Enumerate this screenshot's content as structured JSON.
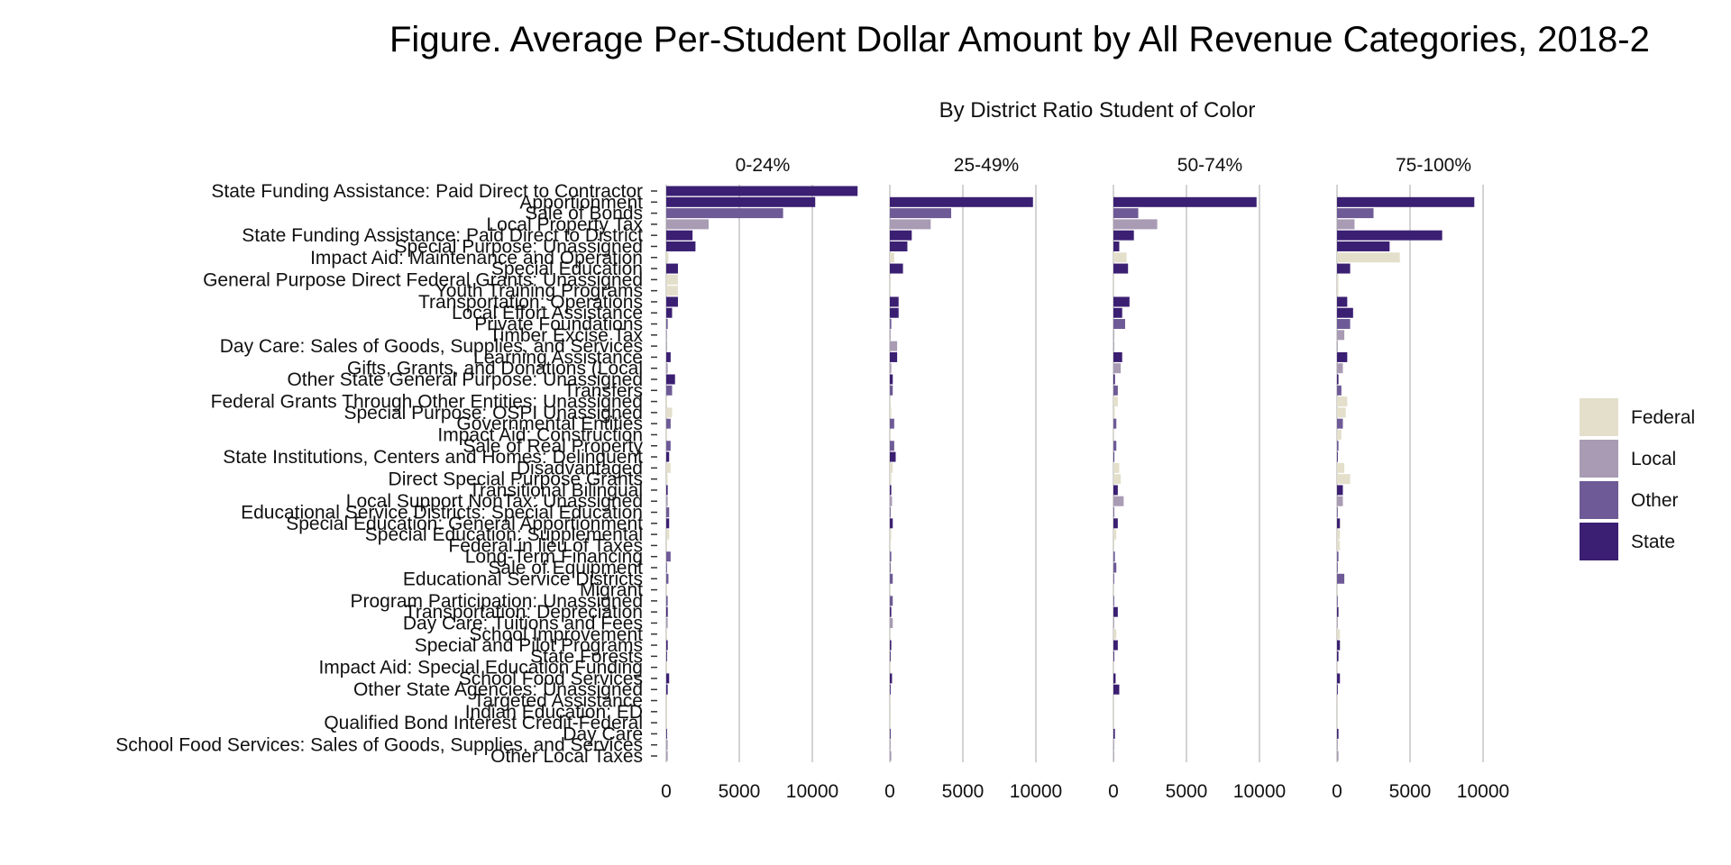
{
  "chart_data": {
    "type": "bar",
    "title": "Figure. Average Per-Student Dollar Amount by All Revenue Categories, 2018-2",
    "subtitle": "By District Ratio Student of Color",
    "panels": [
      "0-24%",
      "25-49%",
      "50-74%",
      "75-100%"
    ],
    "xticks": [
      0,
      5000,
      10000
    ],
    "xlim": [
      0,
      10000
    ],
    "grid": true,
    "legend_position": "right",
    "legend": [
      {
        "name": "Federal",
        "color": "#e3dfcb"
      },
      {
        "name": "Local",
        "color": "#a89bb3"
      },
      {
        "name": "Other",
        "color": "#6e5a96"
      },
      {
        "name": "State",
        "color": "#3b1f72"
      }
    ],
    "categories": [
      {
        "label": "State Funding Assistance: Paid Direct to Contractor",
        "source": "State",
        "values": [
          13100,
          0,
          0,
          0
        ]
      },
      {
        "label": "Apportionment",
        "source": "State",
        "values": [
          10200,
          9800,
          9800,
          9400
        ]
      },
      {
        "label": "Sale of Bonds",
        "source": "Other",
        "values": [
          8000,
          4200,
          1700,
          2500
        ]
      },
      {
        "label": "Local Property Tax",
        "source": "Local",
        "values": [
          2900,
          2800,
          3000,
          1200
        ]
      },
      {
        "label": "State Funding Assistance: Paid Direct to District",
        "source": "State",
        "values": [
          1800,
          1500,
          1400,
          7200
        ]
      },
      {
        "label": "Special Purpose: Unassigned",
        "source": "State",
        "values": [
          2000,
          1200,
          400,
          3600
        ]
      },
      {
        "label": "Impact Aid: Maintenance and Operation",
        "source": "Federal",
        "values": [
          150,
          300,
          900,
          4300
        ]
      },
      {
        "label": "Special Education",
        "source": "State",
        "values": [
          800,
          900,
          1000,
          900
        ]
      },
      {
        "label": "General Purpose Direct Federal Grants: Unassigned",
        "source": "Federal",
        "values": [
          800,
          50,
          50,
          100
        ]
      },
      {
        "label": "Youth Training Programs",
        "source": "Federal",
        "values": [
          800,
          50,
          50,
          100
        ]
      },
      {
        "label": "Transportation: Operations",
        "source": "State",
        "values": [
          800,
          600,
          1100,
          700
        ]
      },
      {
        "label": "Local Effort Assistance",
        "source": "State",
        "values": [
          400,
          600,
          600,
          1100
        ]
      },
      {
        "label": "Private Foundations",
        "source": "Other",
        "values": [
          100,
          100,
          800,
          900
        ]
      },
      {
        "label": "Timber Excise Tax",
        "source": "Local",
        "values": [
          50,
          50,
          50,
          500
        ]
      },
      {
        "label": "Day Care: Sales of Goods, Supplies, and Services",
        "source": "Local",
        "values": [
          50,
          500,
          50,
          50
        ]
      },
      {
        "label": "Learning Assistance",
        "source": "State",
        "values": [
          300,
          500,
          600,
          700
        ]
      },
      {
        "label": "Gifts, Grants, and Donations (Local",
        "source": "Local",
        "values": [
          100,
          100,
          500,
          400
        ]
      },
      {
        "label": "Other State General Purpose: Unassigned",
        "source": "State",
        "values": [
          600,
          200,
          100,
          100
        ]
      },
      {
        "label": "Transfers",
        "source": "Other",
        "values": [
          400,
          200,
          300,
          300
        ]
      },
      {
        "label": "Federal Grants Through Other Entities: Unassigned",
        "source": "Federal",
        "values": [
          50,
          50,
          300,
          700
        ]
      },
      {
        "label": "Special Purpose: OSPI Unassigned",
        "source": "Federal",
        "values": [
          400,
          100,
          100,
          600
        ]
      },
      {
        "label": "Governmental Entities",
        "source": "Other",
        "values": [
          300,
          300,
          200,
          400
        ]
      },
      {
        "label": "Impact Aid: Construction",
        "source": "Federal",
        "values": [
          50,
          50,
          50,
          300
        ]
      },
      {
        "label": "Sale of Real Property",
        "source": "Other",
        "values": [
          300,
          300,
          200,
          100
        ]
      },
      {
        "label": "State Institutions, Centers and Homes: Delinquent",
        "source": "State",
        "values": [
          200,
          400,
          50,
          50
        ]
      },
      {
        "label": "Disadvantaged",
        "source": "Federal",
        "values": [
          300,
          200,
          400,
          500
        ]
      },
      {
        "label": "Direct Special Purpose Grants",
        "source": "Federal",
        "values": [
          100,
          100,
          500,
          900
        ]
      },
      {
        "label": "Transitional Bilingual",
        "source": "State",
        "values": [
          100,
          100,
          300,
          400
        ]
      },
      {
        "label": "Local Support NonTax: Unassigned",
        "source": "Local",
        "values": [
          100,
          150,
          700,
          400
        ]
      },
      {
        "label": "Educational Service Districts: Special Education",
        "source": "Other",
        "values": [
          200,
          50,
          50,
          50
        ]
      },
      {
        "label": "Special Education: General Apportionment",
        "source": "State",
        "values": [
          200,
          200,
          300,
          200
        ]
      },
      {
        "label": "Special Education: Supplemental",
        "source": "Federal",
        "values": [
          200,
          100,
          200,
          200
        ]
      },
      {
        "label": "Federal in lieu of Taxes",
        "source": "Federal",
        "values": [
          50,
          50,
          50,
          200
        ]
      },
      {
        "label": "Long-Term Financing",
        "source": "Other",
        "values": [
          300,
          100,
          100,
          100
        ]
      },
      {
        "label": "Sale of Equipment",
        "source": "Other",
        "values": [
          50,
          50,
          200,
          50
        ]
      },
      {
        "label": "Educational Service Districts",
        "source": "Other",
        "values": [
          150,
          200,
          50,
          500
        ]
      },
      {
        "label": "Migrant",
        "source": "Federal",
        "values": [
          50,
          50,
          50,
          50
        ]
      },
      {
        "label": "Program Participation: Unassigned",
        "source": "Other",
        "values": [
          100,
          200,
          50,
          50
        ]
      },
      {
        "label": "Transportation: Depreciation",
        "source": "State",
        "values": [
          100,
          100,
          300,
          100
        ]
      },
      {
        "label": "Day Care: Tuitions and Fees",
        "source": "Local",
        "values": [
          100,
          200,
          50,
          50
        ]
      },
      {
        "label": "School Improvement",
        "source": "Federal",
        "values": [
          50,
          50,
          200,
          200
        ]
      },
      {
        "label": "Special and Pilot Programs",
        "source": "State",
        "values": [
          100,
          100,
          300,
          200
        ]
      },
      {
        "label": "State Forests",
        "source": "State",
        "values": [
          50,
          50,
          50,
          100
        ]
      },
      {
        "label": "Impact Aid: Special Education Funding",
        "source": "Federal",
        "values": [
          50,
          50,
          50,
          50
        ]
      },
      {
        "label": "School Food Services",
        "source": "State",
        "values": [
          200,
          150,
          150,
          200
        ]
      },
      {
        "label": "Other State Agencies: Unassigned",
        "source": "State",
        "values": [
          100,
          50,
          400,
          50
        ]
      },
      {
        "label": "Targeted Assistance",
        "source": "Federal",
        "values": [
          50,
          50,
          50,
          50
        ]
      },
      {
        "label": "Indian Education: ED",
        "source": "Federal",
        "values": [
          50,
          50,
          50,
          50
        ]
      },
      {
        "label": "Qualified Bond Interest Credit-Federal",
        "source": "Federal",
        "values": [
          50,
          50,
          50,
          50
        ]
      },
      {
        "label": "Day Care",
        "source": "State",
        "values": [
          50,
          50,
          100,
          100
        ]
      },
      {
        "label": "School Food Services: Sales of Goods, Supplies, and Services",
        "source": "Local",
        "values": [
          100,
          50,
          50,
          50
        ]
      },
      {
        "label": "Other Local Taxes",
        "source": "Local",
        "values": [
          100,
          100,
          50,
          100
        ]
      }
    ]
  }
}
